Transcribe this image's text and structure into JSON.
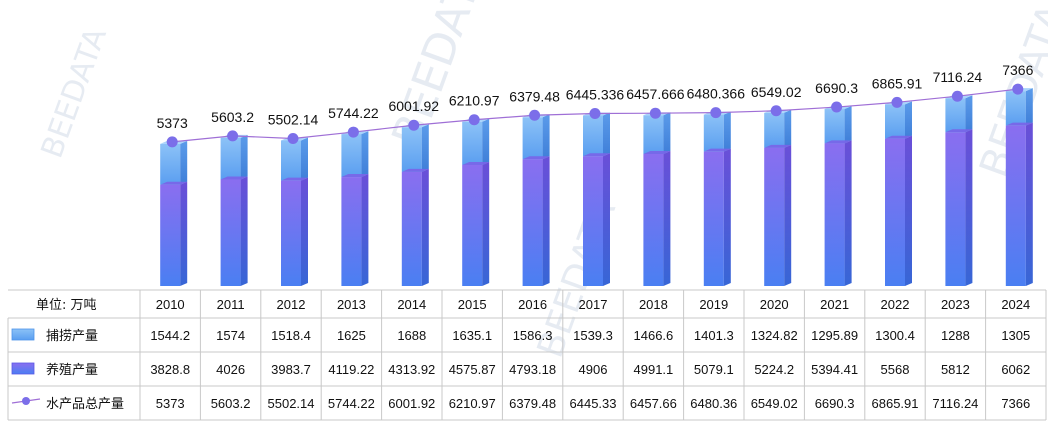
{
  "unit_label": "单位: 万吨",
  "watermark": "BEEDATA",
  "colors": {
    "catch_light": "#8cc2f7",
    "catch_dark": "#4e94ea",
    "aqua_light": "#8a6ef0",
    "aqua_dark": "#4f7ef2",
    "total_line": "#9f6fd6",
    "total_marker": "#7b6ee9",
    "grid": "#c8c8c8"
  },
  "chart_data": {
    "type": "bar",
    "stacked": true,
    "categories": [
      "2010",
      "2011",
      "2012",
      "2013",
      "2014",
      "2015",
      "2016",
      "2017",
      "2018",
      "2019",
      "2020",
      "2021",
      "2022",
      "2023",
      "2024"
    ],
    "series": [
      {
        "name": "捕捞产量",
        "kind": "bar",
        "values": [
          1544.2,
          1574,
          1518.4,
          1625,
          1688,
          1635.1,
          1586.3,
          1539.3,
          1466.6,
          1401.3,
          1324.82,
          1295.89,
          1300.4,
          1288,
          1305
        ]
      },
      {
        "name": "养殖产量",
        "kind": "bar",
        "values": [
          3828.8,
          4026,
          3983.7,
          4119.22,
          4313.92,
          4575.87,
          4793.18,
          4906,
          4991.1,
          5079.1,
          5224.2,
          5394.41,
          5568,
          5812,
          6062
        ]
      },
      {
        "name": "水产品总产量",
        "kind": "line",
        "values": [
          5373,
          5603.2,
          5502.14,
          5744.22,
          6001.92,
          6210.97,
          6379.48,
          6445.33,
          6457.66,
          6480.36,
          6549.02,
          6690.3,
          6865.91,
          7116.24,
          7366
        ]
      }
    ],
    "top_labels": [
      "5373",
      "5603.2",
      "5502.14",
      "5744.22",
      "6001.92",
      "6210.97",
      "6379.48",
      "6445.336",
      "6457.666",
      "6480.366",
      "6549.02",
      "6690.3",
      "6865.91",
      "7116.24",
      "7366"
    ],
    "table": {
      "rows": [
        {
          "name": "捕捞产量",
          "cells": [
            "1544.2",
            "1574",
            "1518.4",
            "1625",
            "1688",
            "1635.1",
            "1586.3",
            "1539.3",
            "1466.6",
            "1401.3",
            "1324.82",
            "1295.89",
            "1300.4",
            "1288",
            "1305"
          ]
        },
        {
          "name": "养殖产量",
          "cells": [
            "3828.8",
            "4026",
            "3983.7",
            "4119.22",
            "4313.92",
            "4575.87",
            "4793.18",
            "4906",
            "4991.1",
            "5079.1",
            "5224.2",
            "5394.41",
            "5568",
            "5812",
            "6062"
          ]
        },
        {
          "name": "水产品总产量",
          "cells": [
            "5373",
            "5603.2",
            "5502.14",
            "5744.22",
            "6001.92",
            "6210.97",
            "6379.48",
            "6445.33",
            "6457.66",
            "6480.36",
            "6549.02",
            "6690.3",
            "6865.91",
            "7116.24",
            "7366"
          ]
        }
      ]
    },
    "legend_placement": "left of data table",
    "grid": false
  }
}
